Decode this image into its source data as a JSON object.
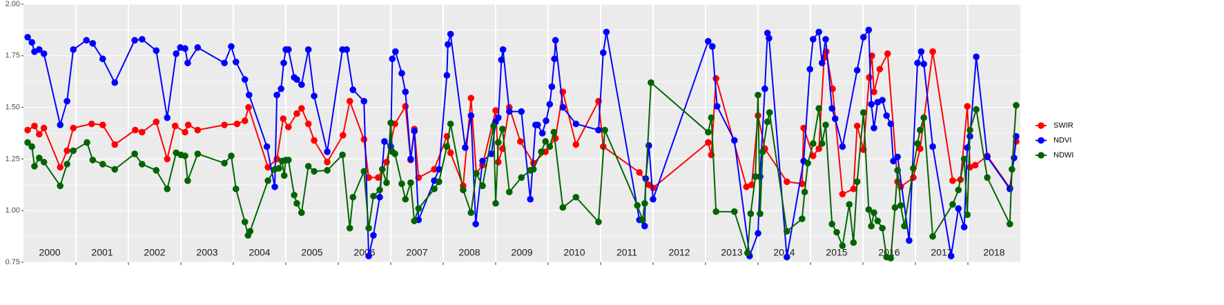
{
  "chart_data": {
    "type": "line",
    "xlim": [
      2000,
      2019
    ],
    "ylim": [
      0.75,
      2.0
    ],
    "yticks": [
      {
        "value": 0.75,
        "label": "0.75"
      },
      {
        "value": 1.0,
        "label": "1.00"
      },
      {
        "value": 1.25,
        "label": "1.25"
      },
      {
        "value": 1.5,
        "label": "1.50"
      },
      {
        "value": 1.75,
        "label": "1.75"
      },
      {
        "value": 2.0,
        "label": "2.00"
      }
    ],
    "years": [
      2000,
      2001,
      2002,
      2003,
      2004,
      2005,
      2006,
      2007,
      2008,
      2009,
      2010,
      2011,
      2012,
      2013,
      2014,
      2015,
      2016,
      2017,
      2018
    ],
    "grid": true,
    "legend": "right",
    "series": [
      {
        "name": "SWIR",
        "color": "#ff0000",
        "x": [
          2000.08,
          2000.21,
          2000.3,
          2000.39,
          2000.7,
          2000.83,
          2000.95,
          2001.3,
          2001.51,
          2001.74,
          2002.13,
          2002.26,
          2002.53,
          2002.74,
          2002.89,
          2003.08,
          2003.14,
          2003.32,
          2003.83,
          2004.07,
          2004.22,
          2004.29,
          2004.66,
          2004.83,
          2004.95,
          2005.05,
          2005.21,
          2005.3,
          2005.43,
          2005.54,
          2005.79,
          2006.09,
          2006.22,
          2006.49,
          2006.58,
          2006.76,
          2006.92,
          2007.08,
          2007.28,
          2007.38,
          2007.45,
          2007.53,
          2007.83,
          2008.07,
          2008.14,
          2008.38,
          2008.53,
          2008.63,
          2008.75,
          2009.0,
          2009.05,
          2009.13,
          2009.26,
          2009.47,
          2009.72,
          2009.95,
          2010.14,
          2010.28,
          2010.53,
          2010.96,
          2011.05,
          2011.74,
          2011.92,
          2012.0,
          2013.05,
          2013.11,
          2013.2,
          2013.78,
          2013.88,
          2014.0,
          2014.13,
          2014.55,
          2014.84,
          2014.87,
          2015.05,
          2015.16,
          2015.26,
          2015.3,
          2015.42,
          2015.61,
          2015.82,
          2015.89,
          2016.01,
          2016.12,
          2016.17,
          2016.21,
          2016.32,
          2016.47,
          2016.66,
          2016.72,
          2016.96,
          2017.09,
          2017.33,
          2017.71,
          2017.86,
          2017.99,
          2018.04,
          2018.14,
          2018.37,
          2018.8,
          2018.92
        ],
        "values": [
          1.39,
          1.41,
          1.37,
          1.4,
          1.21,
          1.29,
          1.4,
          1.42,
          1.415,
          1.32,
          1.39,
          1.38,
          1.43,
          1.25,
          1.41,
          1.38,
          1.415,
          1.39,
          1.415,
          1.42,
          1.435,
          1.5,
          1.21,
          1.25,
          1.445,
          1.405,
          1.47,
          1.495,
          1.42,
          1.34,
          1.235,
          1.365,
          1.53,
          1.345,
          1.16,
          1.16,
          1.235,
          1.42,
          1.505,
          1.245,
          1.395,
          1.16,
          1.2,
          1.36,
          1.28,
          1.12,
          1.545,
          1.18,
          1.22,
          1.485,
          1.235,
          1.3,
          1.5,
          1.335,
          1.23,
          1.285,
          1.35,
          1.575,
          1.32,
          1.53,
          1.31,
          1.185,
          1.125,
          1.11,
          1.33,
          1.27,
          1.64,
          1.115,
          1.125,
          1.46,
          1.3,
          1.14,
          1.13,
          1.4,
          1.265,
          1.3,
          1.74,
          1.77,
          1.59,
          1.08,
          1.105,
          1.41,
          1.295,
          1.645,
          1.75,
          1.575,
          1.685,
          1.76,
          1.14,
          1.115,
          1.16,
          1.3,
          1.77,
          1.145,
          1.15,
          1.505,
          1.21,
          1.22,
          1.265,
          1.11,
          1.335
        ]
      },
      {
        "name": "NDVI",
        "color": "#0000ff",
        "x": [
          2000.08,
          2000.16,
          2000.21,
          2000.3,
          2000.39,
          2000.7,
          2000.83,
          2000.95,
          2001.2,
          2001.32,
          2001.51,
          2001.74,
          2002.12,
          2002.26,
          2002.53,
          2002.74,
          2002.91,
          2002.99,
          2003.08,
          2003.13,
          2003.32,
          2003.83,
          2003.96,
          2004.05,
          2004.22,
          2004.3,
          2004.64,
          2004.79,
          2004.83,
          2004.91,
          2004.96,
          2005.0,
          2005.05,
          2005.16,
          2005.21,
          2005.3,
          2005.43,
          2005.54,
          2005.79,
          2006.08,
          2006.16,
          2006.28,
          2006.49,
          2006.58,
          2006.67,
          2006.79,
          2006.88,
          2007.0,
          2007.03,
          2007.09,
          2007.21,
          2007.28,
          2007.38,
          2007.45,
          2007.53,
          2007.83,
          2007.92,
          2008.07,
          2008.09,
          2008.14,
          2008.42,
          2008.53,
          2008.62,
          2008.75,
          2008.92,
          2009.0,
          2009.05,
          2009.11,
          2009.14,
          2009.26,
          2009.49,
          2009.66,
          2009.76,
          2009.8,
          2009.89,
          2009.96,
          2010.03,
          2010.07,
          2010.12,
          2010.14,
          2010.28,
          2010.53,
          2010.96,
          2011.05,
          2011.11,
          2011.74,
          2011.84,
          2011.86,
          2011.92,
          2012.0,
          2013.05,
          2013.13,
          2013.22,
          2013.55,
          2013.84,
          2014.0,
          2014.04,
          2014.13,
          2014.18,
          2014.21,
          2014.55,
          2014.87,
          2014.99,
          2015.05,
          2015.16,
          2015.22,
          2015.29,
          2015.41,
          2015.47,
          2015.61,
          2015.89,
          2016.01,
          2016.11,
          2016.16,
          2016.21,
          2016.28,
          2016.37,
          2016.45,
          2016.53,
          2016.58,
          2016.66,
          2016.88,
          2017.04,
          2017.11,
          2017.16,
          2017.33,
          2017.68,
          2017.82,
          2017.93,
          2017.99,
          2018.04,
          2018.16,
          2018.37,
          2018.8,
          2018.88,
          2018.92
        ],
        "values": [
          1.84,
          1.815,
          1.77,
          1.78,
          1.76,
          1.415,
          1.53,
          1.78,
          1.825,
          1.81,
          1.735,
          1.62,
          1.825,
          1.83,
          1.775,
          1.45,
          1.76,
          1.79,
          1.785,
          1.715,
          1.79,
          1.715,
          1.795,
          1.72,
          1.635,
          1.56,
          1.31,
          1.115,
          1.56,
          1.59,
          1.715,
          1.78,
          1.78,
          1.645,
          1.635,
          1.61,
          1.78,
          1.555,
          1.285,
          1.78,
          1.78,
          1.585,
          1.53,
          0.78,
          0.88,
          1.065,
          1.335,
          1.31,
          1.735,
          1.77,
          1.665,
          1.575,
          1.25,
          1.385,
          0.955,
          1.145,
          1.2,
          1.655,
          1.805,
          1.855,
          1.305,
          1.46,
          0.935,
          1.24,
          1.275,
          1.43,
          1.45,
          1.73,
          1.78,
          1.48,
          1.48,
          1.055,
          1.415,
          1.415,
          1.375,
          1.435,
          1.515,
          1.6,
          1.735,
          1.825,
          1.5,
          1.42,
          1.39,
          1.765,
          1.865,
          0.955,
          0.925,
          1.155,
          1.315,
          1.055,
          1.82,
          1.795,
          1.505,
          1.34,
          0.78,
          0.89,
          1.165,
          1.59,
          1.86,
          1.835,
          0.775,
          1.24,
          1.685,
          1.83,
          1.865,
          1.715,
          1.83,
          1.495,
          1.445,
          1.31,
          1.68,
          1.84,
          1.875,
          1.515,
          1.4,
          1.525,
          1.535,
          1.46,
          1.42,
          1.24,
          1.26,
          0.855,
          1.715,
          1.77,
          1.71,
          1.31,
          0.78,
          1.01,
          0.92,
          1.305,
          1.36,
          1.745,
          1.26,
          1.105,
          1.255,
          1.36
        ]
      },
      {
        "name": "NDWI",
        "color": "#006400",
        "x": [
          2000.08,
          2000.16,
          2000.21,
          2000.3,
          2000.39,
          2000.7,
          2000.83,
          2000.95,
          2001.21,
          2001.32,
          2001.51,
          2001.74,
          2002.12,
          2002.26,
          2002.53,
          2002.74,
          2002.91,
          2003.0,
          2003.08,
          2003.13,
          2003.32,
          2003.83,
          2003.96,
          2004.05,
          2004.22,
          2004.28,
          2004.32,
          2004.66,
          2004.79,
          2004.87,
          2004.93,
          2004.97,
          2005.0,
          2005.05,
          2005.16,
          2005.21,
          2005.3,
          2005.43,
          2005.54,
          2005.79,
          2006.08,
          2006.22,
          2006.28,
          2006.49,
          2006.58,
          2006.67,
          2006.79,
          2006.84,
          2006.92,
          2007.0,
          2007.03,
          2007.08,
          2007.21,
          2007.28,
          2007.38,
          2007.45,
          2007.53,
          2007.83,
          2007.92,
          2008.07,
          2008.14,
          2008.38,
          2008.53,
          2008.63,
          2008.75,
          2008.96,
          2009.0,
          2009.05,
          2009.13,
          2009.26,
          2009.49,
          2009.66,
          2009.72,
          2009.87,
          2009.95,
          2010.03,
          2010.11,
          2010.28,
          2010.53,
          2010.96,
          2011.08,
          2011.7,
          2011.8,
          2011.84,
          2011.96,
          2013.05,
          2013.11,
          2013.2,
          2013.55,
          2013.8,
          2013.86,
          2013.95,
          2014.0,
          2014.04,
          2014.09,
          2014.18,
          2014.22,
          2014.55,
          2014.84,
          2014.89,
          2014.95,
          2015.05,
          2015.16,
          2015.22,
          2015.29,
          2015.41,
          2015.5,
          2015.61,
          2015.74,
          2015.82,
          2015.89,
          2016.01,
          2016.11,
          2016.16,
          2016.21,
          2016.28,
          2016.37,
          2016.45,
          2016.53,
          2016.61,
          2016.66,
          2016.72,
          2016.79,
          2016.96,
          2017.04,
          2017.09,
          2017.16,
          2017.33,
          2017.71,
          2017.82,
          2017.93,
          2017.99,
          2018.04,
          2018.16,
          2018.37,
          2018.8,
          2018.84,
          2018.92
        ],
        "values": [
          1.33,
          1.31,
          1.215,
          1.255,
          1.235,
          1.12,
          1.225,
          1.29,
          1.33,
          1.245,
          1.225,
          1.2,
          1.275,
          1.225,
          1.195,
          1.105,
          1.28,
          1.27,
          1.265,
          1.145,
          1.275,
          1.23,
          1.265,
          1.105,
          0.945,
          0.88,
          0.9,
          1.145,
          1.2,
          1.205,
          1.24,
          1.17,
          1.245,
          1.245,
          1.075,
          1.035,
          0.99,
          1.215,
          1.19,
          1.195,
          1.27,
          0.915,
          1.065,
          1.19,
          0.915,
          1.07,
          1.1,
          1.2,
          1.135,
          1.425,
          1.285,
          1.275,
          1.13,
          1.055,
          1.135,
          0.95,
          1.01,
          1.105,
          1.14,
          1.31,
          1.42,
          1.1,
          0.99,
          1.18,
          1.12,
          1.41,
          1.035,
          1.33,
          1.395,
          1.09,
          1.16,
          1.195,
          1.2,
          1.285,
          1.335,
          1.31,
          1.38,
          1.015,
          1.065,
          0.945,
          1.39,
          1.025,
          0.955,
          1.035,
          1.62,
          1.38,
          1.45,
          0.995,
          0.995,
          0.795,
          0.985,
          1.165,
          1.56,
          0.985,
          1.285,
          1.43,
          1.475,
          0.9,
          0.96,
          1.09,
          1.23,
          1.325,
          1.495,
          1.325,
          1.415,
          0.935,
          0.895,
          0.83,
          1.03,
          0.845,
          1.14,
          1.475,
          1.005,
          0.925,
          0.99,
          0.95,
          0.915,
          0.775,
          0.77,
          1.015,
          1.195,
          1.025,
          0.925,
          1.205,
          1.325,
          1.39,
          1.45,
          0.875,
          1.03,
          1.1,
          1.25,
          0.98,
          1.39,
          1.49,
          1.16,
          0.935,
          1.2,
          1.51
        ]
      }
    ]
  }
}
